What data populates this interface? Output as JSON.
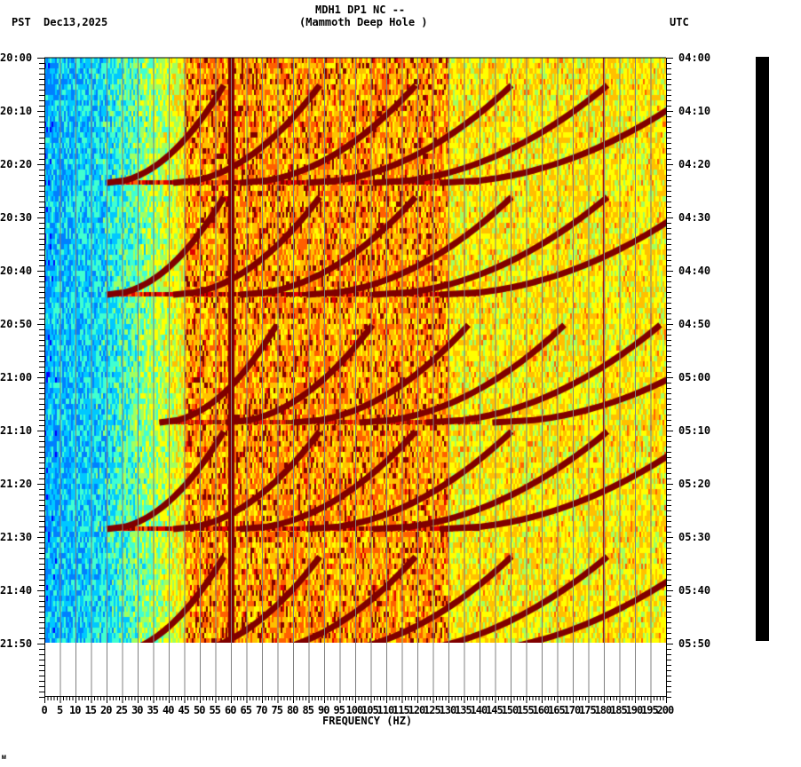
{
  "header": {
    "station": "MDH1 DP1 NC --",
    "site_name": "(Mammoth Deep Hole )",
    "left_tz": "PST",
    "date": "Dec13,2025",
    "right_tz": "UTC"
  },
  "footer_mark": "ᴍ",
  "colors": {
    "background": "#ffffff",
    "grid": "#808080",
    "axis": "#000000",
    "colormap": [
      "#0000ff",
      "#0080ff",
      "#00c8ff",
      "#40ffd0",
      "#a0ff60",
      "#ffff00",
      "#ffc000",
      "#ff6000",
      "#e00000",
      "#800000"
    ]
  },
  "chart_data": {
    "type": "heatmap",
    "title": "MDH1 DP1 NC -- (Mammoth Deep Hole )",
    "subtitle": "PST Dec13,2025",
    "xlabel": "FREQUENCY (HZ)",
    "ylabel_left": "PST",
    "ylabel_right": "UTC",
    "xlim": [
      0,
      200
    ],
    "x_ticks": [
      0,
      5,
      10,
      15,
      20,
      25,
      30,
      35,
      40,
      45,
      50,
      55,
      60,
      65,
      70,
      75,
      80,
      85,
      90,
      95,
      100,
      105,
      110,
      115,
      120,
      125,
      130,
      135,
      140,
      145,
      150,
      155,
      160,
      165,
      170,
      175,
      180,
      185,
      190,
      195,
      200
    ],
    "y_ticks_left": [
      "20:00",
      "20:10",
      "20:20",
      "20:30",
      "20:40",
      "20:50",
      "21:00",
      "21:10",
      "21:20",
      "21:30",
      "21:40",
      "21:50"
    ],
    "y_ticks_right": [
      "04:00",
      "04:10",
      "04:20",
      "04:30",
      "04:40",
      "04:50",
      "05:00",
      "05:10",
      "05:20",
      "05:30",
      "05:40",
      "05:50"
    ],
    "grid": true,
    "features": {
      "persistent_line_hz": 60,
      "weak_line_hz": 180,
      "low_freq_band_hz": [
        0,
        20
      ],
      "low_freq_level": "low (blue)",
      "mid_high_level": "moderate (yellow/orange)",
      "sweep_restart_times_pst": [
        "20:23.5",
        "20:44.5",
        "21:08.5",
        "21:28.5"
      ],
      "sweep_start_hz": [
        20,
        20,
        37,
        20
      ],
      "description": "Repeating upward-sweeping harmonic arcs (dark red) beginning near 20 Hz and curving toward higher frequency, restarting every ~20 minutes"
    }
  }
}
